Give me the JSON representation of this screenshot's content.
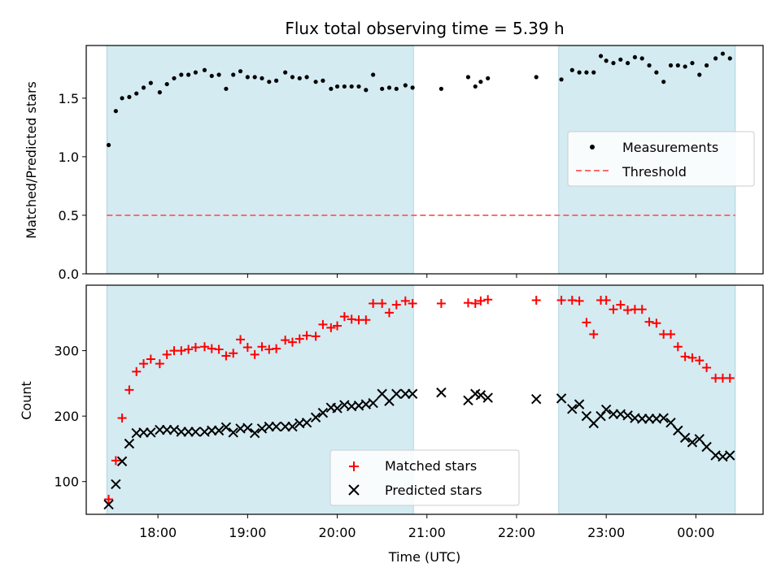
{
  "chart_data": {
    "type": "scatter",
    "title": "Flux total observing time = 5.39 h",
    "xlabel": "Time (UTC)",
    "x_unit": "hours since 00:00 of first day",
    "xlim": [
      17.2,
      24.75
    ],
    "x_ticks": [
      {
        "value": 18,
        "label": "18:00"
      },
      {
        "value": 19,
        "label": "19:00"
      },
      {
        "value": 20,
        "label": "20:00"
      },
      {
        "value": 21,
        "label": "21:00"
      },
      {
        "value": 22,
        "label": "22:00"
      },
      {
        "value": 23,
        "label": "23:00"
      },
      {
        "value": 24,
        "label": "00:00"
      }
    ],
    "shaded_spans": [
      [
        17.43,
        20.85
      ],
      [
        22.47,
        24.44
      ]
    ],
    "shade_color": "#add8e6",
    "panels": [
      {
        "id": "ratio",
        "ylabel": "Matched/Predicted stars",
        "ylim": [
          0,
          1.95
        ],
        "y_ticks": [
          {
            "value": 0.0,
            "label": "0.0"
          },
          {
            "value": 0.5,
            "label": "0.5"
          },
          {
            "value": 1.0,
            "label": "1.0"
          },
          {
            "value": 1.5,
            "label": "1.5"
          }
        ],
        "legend": {
          "position": "center-right",
          "entries": [
            "Measurements",
            "Threshold"
          ]
        },
        "threshold": {
          "name": "Threshold",
          "value": 0.5,
          "color": "#ff6b6b"
        },
        "series": [
          {
            "name": "Measurements",
            "marker": "dot",
            "color": "#000000",
            "points": [
              [
                17.45,
                1.1
              ],
              [
                17.53,
                1.39
              ],
              [
                17.6,
                1.5
              ],
              [
                17.68,
                1.51
              ],
              [
                17.76,
                1.54
              ],
              [
                17.84,
                1.59
              ],
              [
                17.92,
                1.63
              ],
              [
                18.02,
                1.55
              ],
              [
                18.1,
                1.62
              ],
              [
                18.18,
                1.67
              ],
              [
                18.26,
                1.7
              ],
              [
                18.34,
                1.7
              ],
              [
                18.42,
                1.72
              ],
              [
                18.52,
                1.74
              ],
              [
                18.6,
                1.69
              ],
              [
                18.68,
                1.7
              ],
              [
                18.76,
                1.58
              ],
              [
                18.84,
                1.7
              ],
              [
                18.92,
                1.73
              ],
              [
                19.0,
                1.68
              ],
              [
                19.08,
                1.68
              ],
              [
                19.16,
                1.67
              ],
              [
                19.24,
                1.64
              ],
              [
                19.32,
                1.65
              ],
              [
                19.42,
                1.72
              ],
              [
                19.5,
                1.68
              ],
              [
                19.58,
                1.67
              ],
              [
                19.66,
                1.68
              ],
              [
                19.76,
                1.64
              ],
              [
                19.84,
                1.65
              ],
              [
                19.93,
                1.58
              ],
              [
                20.0,
                1.6
              ],
              [
                20.08,
                1.6
              ],
              [
                20.16,
                1.6
              ],
              [
                20.24,
                1.6
              ],
              [
                20.32,
                1.57
              ],
              [
                20.4,
                1.7
              ],
              [
                20.5,
                1.58
              ],
              [
                20.58,
                1.59
              ],
              [
                20.66,
                1.58
              ],
              [
                20.76,
                1.61
              ],
              [
                20.84,
                1.59
              ],
              [
                21.16,
                1.58
              ],
              [
                21.46,
                1.68
              ],
              [
                21.54,
                1.6
              ],
              [
                21.6,
                1.64
              ],
              [
                21.68,
                1.67
              ],
              [
                22.22,
                1.68
              ],
              [
                22.5,
                1.66
              ],
              [
                22.62,
                1.74
              ],
              [
                22.7,
                1.72
              ],
              [
                22.78,
                1.72
              ],
              [
                22.86,
                1.72
              ],
              [
                22.94,
                1.86
              ],
              [
                23.0,
                1.82
              ],
              [
                23.08,
                1.8
              ],
              [
                23.16,
                1.83
              ],
              [
                23.24,
                1.8
              ],
              [
                23.32,
                1.85
              ],
              [
                23.4,
                1.84
              ],
              [
                23.48,
                1.78
              ],
              [
                23.56,
                1.72
              ],
              [
                23.64,
                1.64
              ],
              [
                23.72,
                1.78
              ],
              [
                23.8,
                1.78
              ],
              [
                23.88,
                1.77
              ],
              [
                23.96,
                1.8
              ],
              [
                24.04,
                1.7
              ],
              [
                24.12,
                1.78
              ],
              [
                24.22,
                1.84
              ],
              [
                24.3,
                1.88
              ],
              [
                24.38,
                1.84
              ]
            ]
          }
        ]
      },
      {
        "id": "counts",
        "ylabel": "Count",
        "ylim": [
          50,
          400
        ],
        "y_ticks": [
          {
            "value": 100,
            "label": "100"
          },
          {
            "value": 200,
            "label": "200"
          },
          {
            "value": 300,
            "label": "300"
          }
        ],
        "legend": {
          "position": "lower-center",
          "entries": [
            "Matched stars",
            "Predicted stars"
          ]
        },
        "series": [
          {
            "name": "Matched stars",
            "marker": "plus",
            "color": "#ff0000",
            "points": [
              [
                17.45,
                73
              ],
              [
                17.53,
                132
              ],
              [
                17.6,
                197
              ],
              [
                17.68,
                240
              ],
              [
                17.76,
                268
              ],
              [
                17.84,
                280
              ],
              [
                17.92,
                287
              ],
              [
                18.02,
                280
              ],
              [
                18.1,
                294
              ],
              [
                18.18,
                300
              ],
              [
                18.26,
                300
              ],
              [
                18.34,
                302
              ],
              [
                18.42,
                305
              ],
              [
                18.52,
                306
              ],
              [
                18.6,
                303
              ],
              [
                18.68,
                302
              ],
              [
                18.76,
                292
              ],
              [
                18.84,
                296
              ],
              [
                18.92,
                317
              ],
              [
                19.0,
                305
              ],
              [
                19.08,
                294
              ],
              [
                19.16,
                306
              ],
              [
                19.24,
                302
              ],
              [
                19.32,
                303
              ],
              [
                19.42,
                316
              ],
              [
                19.5,
                313
              ],
              [
                19.58,
                318
              ],
              [
                19.66,
                323
              ],
              [
                19.76,
                322
              ],
              [
                19.84,
                340
              ],
              [
                19.93,
                335
              ],
              [
                20.0,
                338
              ],
              [
                20.08,
                352
              ],
              [
                20.16,
                348
              ],
              [
                20.24,
                347
              ],
              [
                20.32,
                347
              ],
              [
                20.4,
                372
              ],
              [
                20.5,
                372
              ],
              [
                20.58,
                358
              ],
              [
                20.66,
                370
              ],
              [
                20.76,
                376
              ],
              [
                20.84,
                372
              ],
              [
                21.16,
                372
              ],
              [
                21.46,
                373
              ],
              [
                21.54,
                372
              ],
              [
                21.6,
                376
              ],
              [
                21.68,
                378
              ],
              [
                22.22,
                377
              ],
              [
                22.5,
                377
              ],
              [
                22.62,
                377
              ],
              [
                22.7,
                376
              ],
              [
                22.78,
                343
              ],
              [
                22.86,
                325
              ],
              [
                22.94,
                377
              ],
              [
                23.0,
                377
              ],
              [
                23.08,
                363
              ],
              [
                23.16,
                370
              ],
              [
                23.24,
                362
              ],
              [
                23.32,
                363
              ],
              [
                23.4,
                363
              ],
              [
                23.48,
                344
              ],
              [
                23.56,
                342
              ],
              [
                23.64,
                325
              ],
              [
                23.72,
                325
              ],
              [
                23.8,
                306
              ],
              [
                23.88,
                291
              ],
              [
                23.96,
                289
              ],
              [
                24.04,
                285
              ],
              [
                24.12,
                274
              ],
              [
                24.22,
                258
              ],
              [
                24.3,
                258
              ],
              [
                24.38,
                258
              ]
            ]
          },
          {
            "name": "Predicted stars",
            "marker": "x",
            "color": "#000000",
            "points": [
              [
                17.45,
                65
              ],
              [
                17.53,
                96
              ],
              [
                17.6,
                131
              ],
              [
                17.68,
                158
              ],
              [
                17.76,
                174
              ],
              [
                17.84,
                175
              ],
              [
                17.92,
                175
              ],
              [
                18.02,
                179
              ],
              [
                18.1,
                179
              ],
              [
                18.18,
                179
              ],
              [
                18.26,
                176
              ],
              [
                18.34,
                176
              ],
              [
                18.42,
                176
              ],
              [
                18.52,
                176
              ],
              [
                18.6,
                178
              ],
              [
                18.68,
                178
              ],
              [
                18.76,
                183
              ],
              [
                18.84,
                175
              ],
              [
                18.92,
                181
              ],
              [
                19.0,
                182
              ],
              [
                19.08,
                174
              ],
              [
                19.16,
                181
              ],
              [
                19.24,
                184
              ],
              [
                19.32,
                184
              ],
              [
                19.42,
                184
              ],
              [
                19.5,
                184
              ],
              [
                19.58,
                189
              ],
              [
                19.66,
                190
              ],
              [
                19.76,
                198
              ],
              [
                19.84,
                205
              ],
              [
                19.93,
                213
              ],
              [
                20.0,
                212
              ],
              [
                20.08,
                217
              ],
              [
                20.16,
                215
              ],
              [
                20.24,
                216
              ],
              [
                20.32,
                218
              ],
              [
                20.4,
                220
              ],
              [
                20.5,
                234
              ],
              [
                20.58,
                223
              ],
              [
                20.66,
                234
              ],
              [
                20.76,
                234
              ],
              [
                20.84,
                234
              ],
              [
                21.16,
                236
              ],
              [
                21.46,
                224
              ],
              [
                21.54,
                234
              ],
              [
                21.6,
                232
              ],
              [
                21.68,
                228
              ],
              [
                22.22,
                226
              ],
              [
                22.5,
                227
              ],
              [
                22.62,
                211
              ],
              [
                22.7,
                218
              ],
              [
                22.78,
                200
              ],
              [
                22.86,
                189
              ],
              [
                22.94,
                200
              ],
              [
                23.0,
                210
              ],
              [
                23.08,
                203
              ],
              [
                23.16,
                203
              ],
              [
                23.24,
                201
              ],
              [
                23.32,
                197
              ],
              [
                23.4,
                196
              ],
              [
                23.48,
                196
              ],
              [
                23.56,
                196
              ],
              [
                23.64,
                197
              ],
              [
                23.72,
                190
              ],
              [
                23.8,
                178
              ],
              [
                23.88,
                167
              ],
              [
                23.96,
                160
              ],
              [
                24.04,
                165
              ],
              [
                24.12,
                153
              ],
              [
                24.22,
                140
              ],
              [
                24.3,
                138
              ],
              [
                24.38,
                140
              ]
            ]
          }
        ]
      }
    ]
  }
}
